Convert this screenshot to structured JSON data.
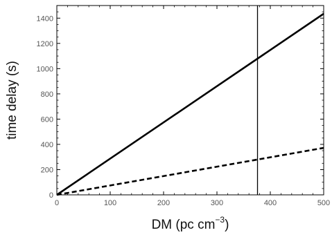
{
  "chart_data": {
    "type": "line",
    "title": "",
    "xlabel": "DM (pc cm",
    "xlabel_sup": "−3",
    "xlabel_close": ")",
    "ylabel": "time delay (s)",
    "xlim": [
      0,
      500
    ],
    "ylim": [
      0,
      1500
    ],
    "x_ticks": [
      0,
      100,
      200,
      300,
      400,
      500
    ],
    "x_tick_labels": [
      "0",
      "100",
      "200",
      "300",
      "400",
      "500"
    ],
    "y_ticks": [
      0,
      200,
      400,
      600,
      800,
      1000,
      1200,
      1400
    ],
    "y_tick_labels": [
      "0",
      "200",
      "400",
      "600",
      "800",
      "1000",
      "1200",
      "1400"
    ],
    "grid": false,
    "series": [
      {
        "x": [
          0,
          500
        ],
        "y": [
          0,
          1435
        ],
        "style": "solid",
        "color": "#000000"
      },
      {
        "x": [
          0,
          500
        ],
        "y": [
          0,
          372
        ],
        "style": "dashed",
        "color": "#000000"
      }
    ],
    "vline": {
      "x": 376,
      "color": "#000000"
    }
  }
}
